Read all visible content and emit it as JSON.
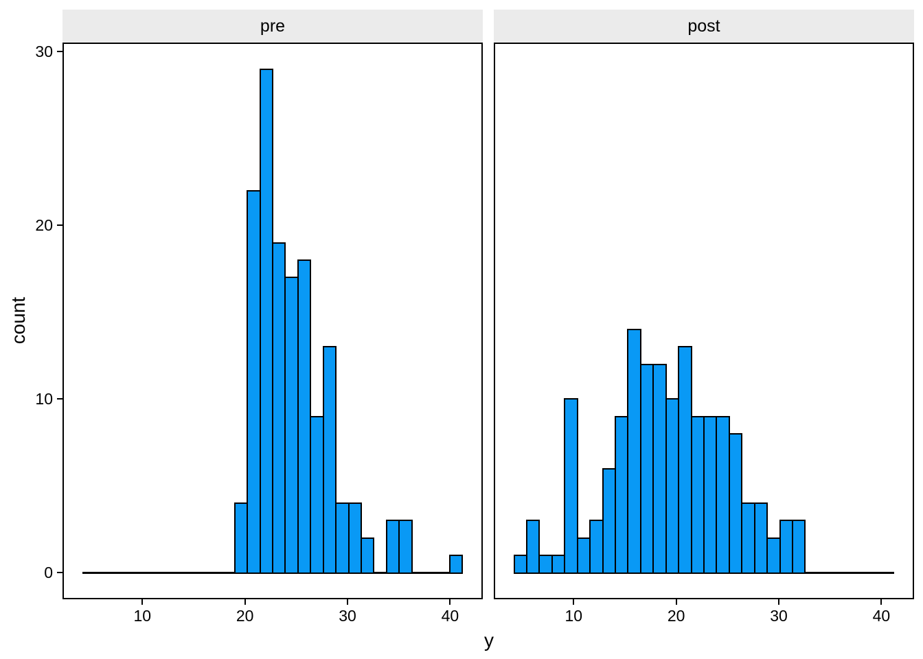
{
  "figure": {
    "xlabel": "y",
    "ylabel": "count"
  },
  "chart_data": {
    "type": "bar",
    "subtype": "faceted-histogram",
    "xlabel": "y",
    "ylabel": "count",
    "facets": [
      {
        "label": "pre",
        "counts": [
          0,
          0,
          0,
          0,
          0,
          0,
          0,
          0,
          0,
          0,
          0,
          0,
          4,
          22,
          29,
          19,
          17,
          18,
          9,
          13,
          4,
          4,
          2,
          0,
          3,
          3,
          0,
          0,
          0,
          1
        ]
      },
      {
        "label": "post",
        "counts": [
          1,
          3,
          1,
          1,
          10,
          2,
          3,
          6,
          9,
          14,
          12,
          12,
          10,
          13,
          9,
          9,
          9,
          8,
          4,
          4,
          2,
          3,
          3,
          0,
          0,
          0,
          0,
          0,
          0,
          0
        ]
      }
    ],
    "bins": {
      "start": 4.2,
      "width": 1.23333,
      "n": 30
    },
    "x_ticks": [
      10,
      20,
      30,
      40
    ],
    "y_ticks": [
      0,
      10,
      20,
      30
    ],
    "xlim": [
      2.35,
      43.05
    ],
    "ylim": [
      -1.45,
      30.45
    ],
    "grid": "off",
    "legend": "none",
    "colors": {
      "bar_fill": "#0999F5",
      "bar_stroke": "#000000",
      "strip_fill": "#EBEBEB",
      "panel_border": "#000000",
      "background": "#FFFFFF",
      "text": "#000000"
    }
  }
}
